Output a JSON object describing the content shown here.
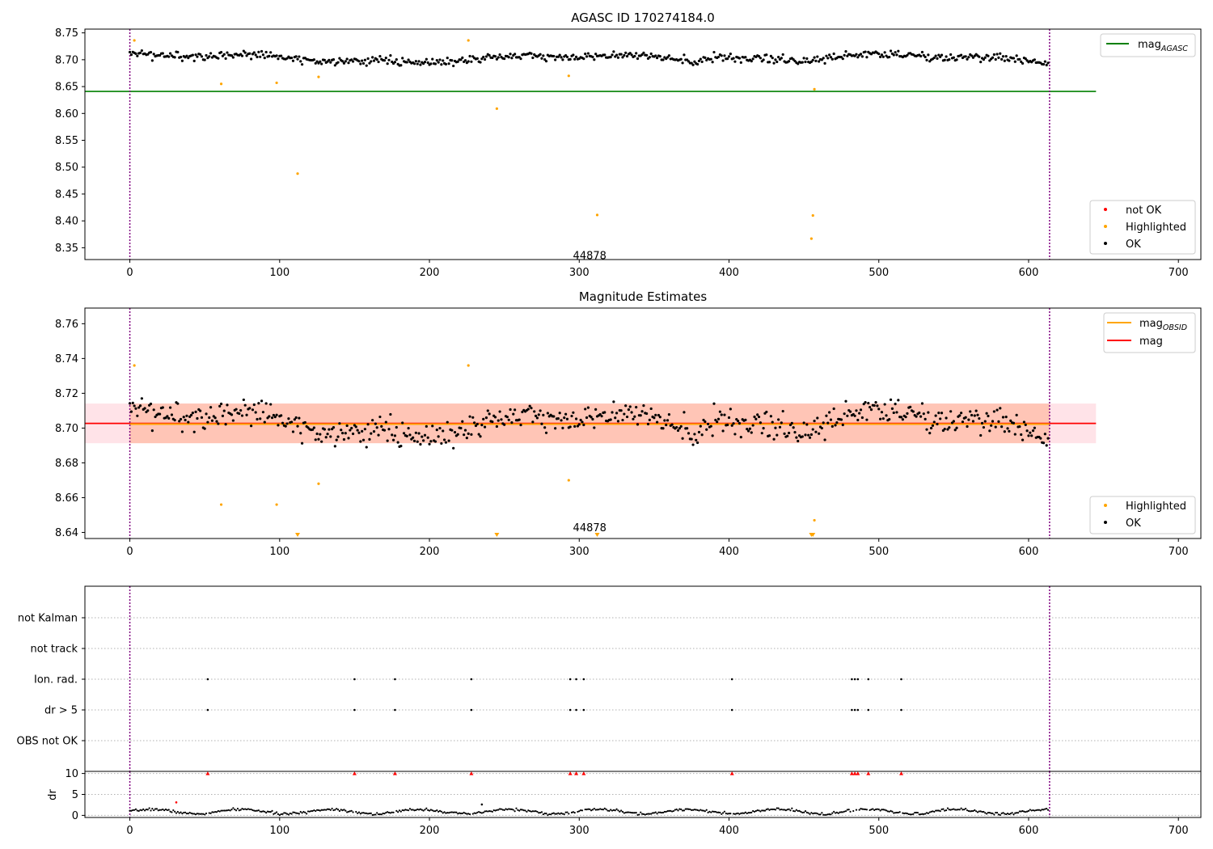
{
  "chart_data": [
    {
      "type": "scatter",
      "title": "AGASC ID 170274184.0",
      "xlabel": "",
      "ylabel": "",
      "xlim": [
        -30,
        715
      ],
      "ylim": [
        8.328,
        8.757
      ],
      "xticks": [
        0,
        100,
        200,
        300,
        400,
        500,
        600,
        700
      ],
      "yticks": [
        8.35,
        8.4,
        8.45,
        8.5,
        8.55,
        8.6,
        8.65,
        8.7,
        8.75
      ],
      "ytick_labels": [
        "8.35",
        "8.40",
        "8.45",
        "8.50",
        "8.55",
        "8.60",
        "8.65",
        "8.70",
        "8.75"
      ],
      "vlines": [
        0,
        614
      ],
      "hline": {
        "name": "mag_AGASC",
        "y": 8.641,
        "x_end": 645,
        "color": "#008000"
      },
      "annotation": {
        "text": "44878",
        "x": 307,
        "y": 8.335
      },
      "baseline": {
        "mean": 8.703,
        "amp": 0.01,
        "noise": 0.004,
        "n": 614
      },
      "highlighted_points": [
        {
          "x": 3,
          "y": 8.736
        },
        {
          "x": 61,
          "y": 8.655
        },
        {
          "x": 98,
          "y": 8.657
        },
        {
          "x": 112,
          "y": 8.488
        },
        {
          "x": 126,
          "y": 8.668
        },
        {
          "x": 226,
          "y": 8.736
        },
        {
          "x": 245,
          "y": 8.609
        },
        {
          "x": 293,
          "y": 8.67
        },
        {
          "x": 312,
          "y": 8.411
        },
        {
          "x": 455,
          "y": 8.367
        },
        {
          "x": 456,
          "y": 8.41
        },
        {
          "x": 457,
          "y": 8.645
        }
      ],
      "legend_top": {
        "placement": "top-right",
        "entries": [
          {
            "label_main": "mag",
            "label_sub": "AGASC",
            "color": "#008000"
          }
        ]
      },
      "legend_bottom": {
        "placement": "bottom-right",
        "entries": [
          {
            "label": "not OK",
            "color": "#ff0000"
          },
          {
            "label": "Highlighted",
            "color": "#ffa500"
          },
          {
            "label": "OK",
            "color": "#000000"
          }
        ]
      }
    },
    {
      "type": "scatter",
      "title": "Magnitude Estimates",
      "xlabel": "",
      "ylabel": "",
      "xlim": [
        -30,
        715
      ],
      "ylim": [
        8.6365,
        8.769
      ],
      "xticks": [
        0,
        100,
        200,
        300,
        400,
        500,
        600,
        700
      ],
      "yticks": [
        8.64,
        8.66,
        8.68,
        8.7,
        8.72,
        8.74,
        8.76
      ],
      "ytick_labels": [
        "8.64",
        "8.66",
        "8.68",
        "8.70",
        "8.72",
        "8.74",
        "8.76"
      ],
      "vlines": [
        0,
        614
      ],
      "mag_line": {
        "y": 8.7027,
        "color": "#ff0000"
      },
      "mag_obsid_line": {
        "y": 8.7023,
        "color": "#ffa500"
      },
      "band_outer": {
        "y0": 8.6913,
        "y1": 8.7141,
        "x_end": 645,
        "color": "#ffc0cb"
      },
      "band_inner": {
        "y0": 8.6913,
        "y1": 8.7141,
        "x0": 0,
        "x1": 614,
        "color": "#ffa07a"
      },
      "annotation": {
        "text": "44878",
        "x": 307,
        "y": 8.6425
      },
      "highlighted_points": [
        {
          "x": 3,
          "y": 8.736
        },
        {
          "x": 61,
          "y": 8.656
        },
        {
          "x": 98,
          "y": 8.656
        },
        {
          "x": 126,
          "y": 8.668
        },
        {
          "x": 226,
          "y": 8.736
        },
        {
          "x": 293,
          "y": 8.67
        },
        {
          "x": 457,
          "y": 8.647
        }
      ],
      "clipped_markers_x": [
        112,
        245,
        312,
        455,
        456
      ],
      "legend_top": {
        "placement": "top-right",
        "entries": [
          {
            "label_main": "mag",
            "label_sub": "OBSID",
            "color": "#ffa500"
          },
          {
            "label_main": "mag",
            "label_sub": "",
            "color": "#ff0000"
          }
        ]
      },
      "legend_bottom": {
        "placement": "bottom-right",
        "entries": [
          {
            "label": "Highlighted",
            "color": "#ffa500"
          },
          {
            "label": "OK",
            "color": "#000000"
          }
        ]
      }
    },
    {
      "type": "scatter",
      "title": "",
      "xlabel": "",
      "ylabel": "",
      "xlim": [
        -30,
        715
      ],
      "categories": [
        "not Kalman",
        "not track",
        "Ion. rad.",
        "dr > 5",
        "OBS not OK"
      ],
      "vlines": [
        0,
        614
      ],
      "flag_points": {
        "Ion. rad.": [
          52,
          150,
          177,
          228,
          294,
          298,
          303,
          402,
          482,
          484,
          486,
          493,
          515
        ],
        "dr > 5": [
          52,
          150,
          177,
          228,
          294,
          298,
          303,
          402,
          482,
          484,
          486,
          493,
          515
        ]
      }
    },
    {
      "type": "scatter",
      "title": "",
      "xlabel": "",
      "ylabel": "dr",
      "xlim": [
        -30,
        715
      ],
      "ylim": [
        -0.5,
        10.5
      ],
      "yticks": [
        0,
        5,
        10
      ],
      "ytick_labels": [
        "0",
        "5",
        "10"
      ],
      "vlines": [
        0,
        614
      ],
      "clipped_x": [
        52,
        150,
        177,
        228,
        294,
        298,
        303,
        402,
        482,
        484,
        486,
        493,
        515
      ],
      "clip_value": 10,
      "extra_points": [
        {
          "x": 31,
          "y": 3.1
        },
        {
          "x": 235,
          "y": 2.6
        }
      ],
      "baseline": {
        "mean": 0.9,
        "amp": 0.55,
        "n": 614
      }
    }
  ]
}
